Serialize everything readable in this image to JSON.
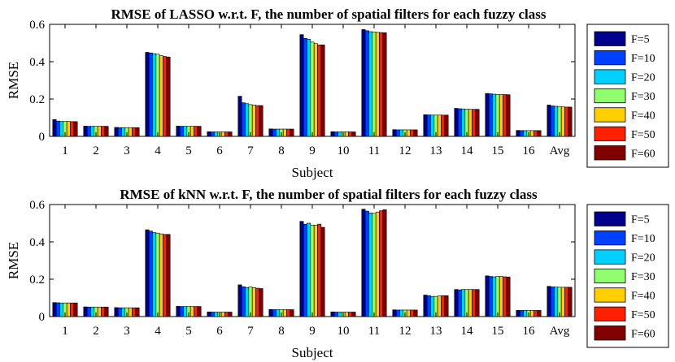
{
  "chart_data": [
    {
      "type": "bar",
      "title": "RMSE of LASSO w.r.t. F, the number of spatial filters for each fuzzy class",
      "xlabel": "Subject",
      "ylabel": "RMSE",
      "ylim": [
        0,
        0.6
      ],
      "yticks": [
        "0",
        "0.2",
        "0.4",
        "0.6"
      ],
      "grid": false,
      "legend_position": "right",
      "categories": [
        "1",
        "2",
        "3",
        "4",
        "5",
        "6",
        "7",
        "8",
        "9",
        "10",
        "11",
        "12",
        "13",
        "14",
        "15",
        "16",
        "Avg"
      ],
      "series": [
        {
          "name": "F=5",
          "color": "#00008f",
          "values": [
            0.09,
            0.055,
            0.048,
            0.45,
            0.055,
            0.025,
            0.215,
            0.04,
            0.545,
            0.025,
            0.572,
            0.036,
            0.116,
            0.15,
            0.23,
            0.032,
            0.168
          ]
        },
        {
          "name": "F=10",
          "color": "#0040ff",
          "values": [
            0.082,
            0.054,
            0.047,
            0.447,
            0.054,
            0.024,
            0.18,
            0.039,
            0.525,
            0.024,
            0.566,
            0.035,
            0.115,
            0.148,
            0.228,
            0.031,
            0.163
          ]
        },
        {
          "name": "F=20",
          "color": "#00d0ff",
          "values": [
            0.08,
            0.054,
            0.047,
            0.443,
            0.054,
            0.024,
            0.175,
            0.039,
            0.52,
            0.024,
            0.561,
            0.035,
            0.114,
            0.147,
            0.226,
            0.031,
            0.161
          ]
        },
        {
          "name": "F=30",
          "color": "#8fff70",
          "values": [
            0.08,
            0.054,
            0.047,
            0.44,
            0.054,
            0.024,
            0.17,
            0.039,
            0.505,
            0.024,
            0.559,
            0.035,
            0.114,
            0.146,
            0.225,
            0.031,
            0.16
          ]
        },
        {
          "name": "F=40",
          "color": "#ffcf00",
          "values": [
            0.08,
            0.054,
            0.047,
            0.432,
            0.054,
            0.024,
            0.168,
            0.039,
            0.497,
            0.024,
            0.557,
            0.035,
            0.114,
            0.145,
            0.224,
            0.031,
            0.158
          ]
        },
        {
          "name": "F=50",
          "color": "#ff2000",
          "values": [
            0.079,
            0.054,
            0.047,
            0.428,
            0.054,
            0.024,
            0.165,
            0.039,
            0.49,
            0.024,
            0.556,
            0.035,
            0.114,
            0.145,
            0.224,
            0.031,
            0.157
          ]
        },
        {
          "name": "F=60",
          "color": "#800000",
          "values": [
            0.079,
            0.054,
            0.047,
            0.425,
            0.054,
            0.024,
            0.165,
            0.039,
            0.49,
            0.024,
            0.555,
            0.035,
            0.114,
            0.145,
            0.223,
            0.031,
            0.157
          ]
        }
      ]
    },
    {
      "type": "bar",
      "title": "RMSE of kNN w.r.t. F, the number of spatial filters for each fuzzy class",
      "xlabel": "Subject",
      "ylabel": "RMSE",
      "ylim": [
        0,
        0.6
      ],
      "yticks": [
        "0",
        "0.2",
        "0.4",
        "0.6"
      ],
      "grid": false,
      "legend_position": "right",
      "categories": [
        "1",
        "2",
        "3",
        "4",
        "5",
        "6",
        "7",
        "8",
        "9",
        "10",
        "11",
        "12",
        "13",
        "14",
        "15",
        "16",
        "Avg"
      ],
      "series": [
        {
          "name": "F=5",
          "color": "#00008f",
          "values": [
            0.075,
            0.052,
            0.048,
            0.465,
            0.055,
            0.025,
            0.17,
            0.038,
            0.51,
            0.025,
            0.575,
            0.036,
            0.115,
            0.145,
            0.218,
            0.033,
            0.162
          ]
        },
        {
          "name": "F=10",
          "color": "#0040ff",
          "values": [
            0.074,
            0.051,
            0.047,
            0.458,
            0.054,
            0.024,
            0.16,
            0.037,
            0.495,
            0.024,
            0.565,
            0.035,
            0.112,
            0.143,
            0.215,
            0.033,
            0.159
          ]
        },
        {
          "name": "F=20",
          "color": "#00d0ff",
          "values": [
            0.073,
            0.051,
            0.047,
            0.45,
            0.054,
            0.024,
            0.155,
            0.037,
            0.5,
            0.024,
            0.555,
            0.035,
            0.108,
            0.145,
            0.213,
            0.033,
            0.158
          ]
        },
        {
          "name": "F=30",
          "color": "#8fff70",
          "values": [
            0.073,
            0.051,
            0.047,
            0.447,
            0.054,
            0.024,
            0.158,
            0.037,
            0.49,
            0.024,
            0.553,
            0.035,
            0.108,
            0.145,
            0.215,
            0.033,
            0.157
          ]
        },
        {
          "name": "F=40",
          "color": "#ffcf00",
          "values": [
            0.073,
            0.051,
            0.047,
            0.443,
            0.054,
            0.024,
            0.155,
            0.037,
            0.49,
            0.024,
            0.56,
            0.035,
            0.11,
            0.145,
            0.215,
            0.033,
            0.157
          ]
        },
        {
          "name": "F=50",
          "color": "#ff2000",
          "values": [
            0.073,
            0.051,
            0.047,
            0.44,
            0.054,
            0.024,
            0.152,
            0.037,
            0.495,
            0.024,
            0.567,
            0.035,
            0.112,
            0.145,
            0.213,
            0.033,
            0.157
          ]
        },
        {
          "name": "F=60",
          "color": "#800000",
          "values": [
            0.073,
            0.051,
            0.047,
            0.44,
            0.054,
            0.024,
            0.15,
            0.037,
            0.478,
            0.024,
            0.572,
            0.035,
            0.112,
            0.145,
            0.212,
            0.033,
            0.157
          ]
        }
      ]
    }
  ]
}
